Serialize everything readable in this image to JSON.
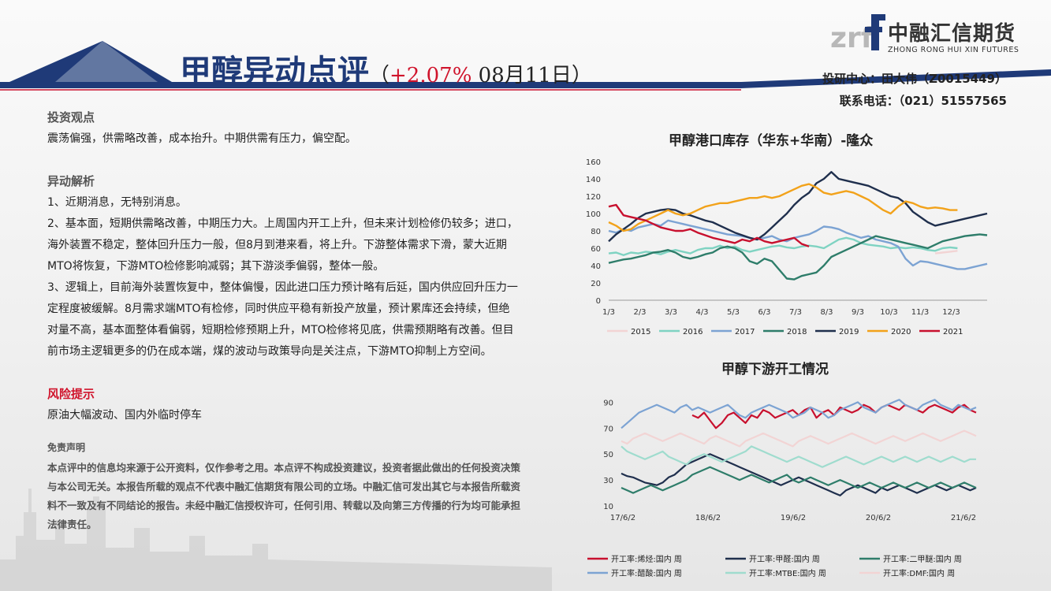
{
  "header": {
    "title": "甲醇异动点评",
    "sub_open": "（",
    "change": "+2.07%",
    "date": " 08月11日",
    "sub_close": "）",
    "author_line": "投研中心：田大伟（Z0015449）",
    "contact_line": "联系电话：（021）51557565"
  },
  "logo": {
    "mark": "zrf",
    "cn": "中融汇信期货",
    "en": "ZHONG RONG HUI XIN FUTURES"
  },
  "content": {
    "view_title": "投资观点",
    "view_text": "震荡偏强，供需略改善，成本抬升。中期供需有压力，偏空配。",
    "analysis_title": "异动解析",
    "p1": "1、近期消息，无特别消息。",
    "p2": "2、基本面，短期供需略改善，中期压力大。上周国内开工上升，但未来计划检修仍较多；进口，海外装置不稳定，整体回升压力一般，但8月到港来看，将上升。下游整体需求下滑，蒙大近期MTO将恢复，下游MTO检修影响减弱；其下游淡季偏弱，整体一般。",
    "p3": "3、逻辑上，目前海外装置恢复中，整体偏慢，因此进口压力预计略有后延，国内供应回升压力一定程度被缓解。8月需求端MTO有检修，同时供应平稳有新投产放量，预计累库还会持续，但绝对量不高，基本面整体看偏弱，短期检修预期上升，MTO检修将见底，供需预期略有改善。但目前市场主逻辑更多的仍在成本端，煤的波动与政策导向是关注点，下游MTO抑制上方空间。",
    "risk_title": "风险提示",
    "risk_text": "原油大幅波动、国内外临时停车",
    "disc_title": "免责声明",
    "disc_text": "本点评中的信息均来源于公开资料，仅作参考之用。本点评不构成投资建议，投资者据此做出的任何投资决策与本公司无关。本报告所载的观点不代表中融汇信期货有限公司的立场。中融汇信可发出其它与本报告所载资料不一致及有不同结论的报告。未经中融汇信授权许可，任何引用、转载以及向第三方传播的行为均可能承担法律责任。"
  },
  "chart_data": [
    {
      "type": "line",
      "title": "甲醇港口库存（华东+华南）-隆众",
      "ylim": [
        0,
        160
      ],
      "yticks": [
        "0",
        "20",
        "40",
        "60",
        "80",
        "100",
        "120",
        "140",
        "160"
      ],
      "xticks": [
        "1/3",
        "2/3",
        "3/3",
        "4/3",
        "5/3",
        "6/3",
        "7/3",
        "8/3",
        "9/3",
        "10/3",
        "11/3",
        "12/3"
      ],
      "x": [
        1,
        2,
        3,
        4,
        5,
        6,
        7,
        8,
        9,
        10,
        11,
        12,
        13,
        14,
        15,
        16,
        17,
        18,
        19,
        20,
        21,
        22,
        23,
        24,
        25,
        26,
        27,
        28,
        29,
        30,
        31,
        32,
        33,
        34,
        35,
        36,
        37,
        38,
        39,
        40,
        41,
        42,
        43,
        44,
        45,
        46,
        47,
        48,
        49,
        50,
        51,
        52
      ],
      "legend_position": "bottom",
      "series": [
        {
          "name": "2015",
          "color": "#f2d4d4",
          "values": [
            null,
            null,
            null,
            null,
            null,
            null,
            null,
            null,
            null,
            null,
            null,
            null,
            null,
            null,
            null,
            null,
            null,
            null,
            null,
            null,
            null,
            null,
            null,
            null,
            null,
            null,
            null,
            null,
            null,
            null,
            null,
            null,
            null,
            null,
            null,
            null,
            null,
            null,
            null,
            null,
            null,
            null,
            null,
            null,
            54,
            55,
            56,
            57,
            null,
            null,
            null,
            null
          ]
        },
        {
          "name": "2016",
          "color": "#7fd3c2",
          "values": [
            54,
            55,
            52,
            55,
            54,
            56,
            55,
            53,
            56,
            58,
            56,
            54,
            58,
            60,
            60,
            63,
            60,
            62,
            58,
            56,
            58,
            60,
            62,
            63,
            61,
            60,
            62,
            63,
            62,
            60,
            65,
            70,
            72,
            70,
            66,
            64,
            63,
            62,
            60,
            61,
            60,
            61,
            60,
            58,
            57,
            60,
            61,
            60,
            null,
            null,
            null,
            null
          ]
        },
        {
          "name": "2017",
          "color": "#7ca3d3",
          "values": [
            80,
            78,
            82,
            80,
            84,
            86,
            88,
            86,
            92,
            90,
            88,
            86,
            84,
            82,
            80,
            78,
            76,
            75,
            74,
            72,
            70,
            72,
            74,
            70,
            68,
            72,
            74,
            76,
            80,
            85,
            84,
            82,
            78,
            75,
            72,
            74,
            70,
            68,
            66,
            62,
            48,
            40,
            45,
            44,
            42,
            40,
            38,
            36,
            36,
            38,
            40,
            42
          ]
        },
        {
          "name": "2018",
          "color": "#2e7d6a",
          "values": [
            43,
            45,
            47,
            48,
            50,
            52,
            55,
            56,
            58,
            55,
            50,
            48,
            50,
            53,
            55,
            60,
            62,
            60,
            55,
            45,
            42,
            48,
            45,
            35,
            25,
            24,
            28,
            30,
            32,
            40,
            50,
            54,
            58,
            62,
            66,
            70,
            74,
            72,
            70,
            68,
            66,
            64,
            62,
            60,
            64,
            68,
            70,
            72,
            74,
            75,
            76,
            75
          ]
        },
        {
          "name": "2019",
          "color": "#1f2f4d",
          "values": [
            68,
            76,
            82,
            88,
            95,
            100,
            102,
            104,
            105,
            104,
            100,
            98,
            95,
            92,
            90,
            86,
            82,
            78,
            75,
            72,
            70,
            76,
            84,
            92,
            100,
            110,
            118,
            124,
            135,
            140,
            148,
            140,
            138,
            136,
            134,
            132,
            128,
            124,
            120,
            118,
            112,
            102,
            96,
            90,
            86,
            88,
            90,
            92,
            94,
            96,
            98,
            100
          ]
        },
        {
          "name": "2020",
          "color": "#f2a21a",
          "values": [
            90,
            86,
            80,
            82,
            88,
            92,
            96,
            100,
            104,
            100,
            98,
            100,
            104,
            108,
            110,
            112,
            112,
            114,
            116,
            118,
            118,
            120,
            118,
            120,
            124,
            128,
            132,
            134,
            130,
            124,
            122,
            124,
            126,
            124,
            120,
            116,
            110,
            104,
            100,
            108,
            114,
            112,
            108,
            106,
            107,
            106,
            104,
            104,
            null,
            null,
            null,
            null
          ]
        },
        {
          "name": "2021",
          "color": "#c8102e",
          "values": [
            108,
            110,
            98,
            96,
            94,
            92,
            88,
            84,
            82,
            80,
            80,
            82,
            78,
            75,
            72,
            70,
            68,
            66,
            70,
            68,
            72,
            68,
            66,
            68,
            70,
            72,
            65,
            62,
            null,
            null,
            null,
            null,
            null,
            null,
            null,
            null,
            null,
            null,
            null,
            null,
            null,
            null,
            null,
            null,
            null,
            null,
            null,
            null,
            null,
            null,
            null,
            null
          ]
        }
      ]
    },
    {
      "type": "line",
      "title": "甲醇下游开工情况",
      "yticks": [
        "10",
        "30",
        "50",
        "70",
        "90"
      ],
      "ylim": [
        10,
        100
      ],
      "xticks": [
        "17/6/2",
        "18/6/2",
        "19/6/2",
        "20/6/2",
        "21/6/2"
      ],
      "legend_position": "bottom",
      "x": [
        0,
        1,
        2,
        3,
        4,
        5,
        6,
        7,
        8,
        9,
        10,
        11,
        12,
        13,
        14,
        15,
        16,
        17,
        18,
        19,
        20,
        21,
        22,
        23,
        24,
        25,
        26,
        27,
        28,
        29,
        30,
        31,
        32,
        33,
        34,
        35,
        36,
        37,
        38,
        39,
        40,
        41,
        42,
        43,
        44,
        45,
        46,
        47,
        48,
        49,
        50,
        51,
        52,
        53,
        54,
        55,
        56,
        57,
        58,
        59,
        60
      ],
      "series": [
        {
          "name": "开工率:烯烃:国内 周",
          "color": "#c8102e",
          "values": [
            null,
            null,
            null,
            null,
            null,
            null,
            null,
            null,
            null,
            null,
            null,
            null,
            80,
            78,
            82,
            76,
            70,
            74,
            80,
            82,
            78,
            74,
            80,
            78,
            84,
            82,
            78,
            80,
            82,
            84,
            80,
            84,
            86,
            78,
            82,
            84,
            80,
            86,
            84,
            82,
            84,
            88,
            86,
            82,
            86,
            88,
            86,
            84,
            88,
            86,
            84,
            82,
            86,
            88,
            86,
            84,
            82,
            86,
            88,
            84,
            82
          ]
        },
        {
          "name": "开工率:甲醛:国内 周",
          "color": "#1f2f4d",
          "values": [
            35,
            33,
            32,
            30,
            28,
            27,
            26,
            28,
            32,
            34,
            38,
            42,
            44,
            46,
            48,
            50,
            48,
            46,
            44,
            42,
            40,
            38,
            36,
            34,
            32,
            30,
            28,
            26,
            28,
            30,
            32,
            30,
            28,
            26,
            24,
            22,
            20,
            18,
            22,
            24,
            26,
            24,
            22,
            20,
            24,
            22,
            24,
            26,
            24,
            22,
            20,
            22,
            24,
            26,
            24,
            22,
            24,
            26,
            24,
            22,
            24
          ]
        },
        {
          "name": "开工率:二甲醚:国内 周",
          "color": "#2e7d6a",
          "values": [
            24,
            22,
            20,
            22,
            24,
            26,
            24,
            22,
            24,
            26,
            28,
            30,
            34,
            36,
            38,
            40,
            38,
            36,
            34,
            32,
            30,
            32,
            34,
            32,
            30,
            28,
            30,
            32,
            34,
            30,
            28,
            30,
            32,
            30,
            28,
            26,
            28,
            30,
            28,
            26,
            24,
            26,
            28,
            26,
            24,
            26,
            28,
            26,
            24,
            26,
            28,
            26,
            24,
            26,
            28,
            26,
            24,
            26,
            28,
            26,
            24
          ]
        },
        {
          "name": "开工率:醋酸:国内 周",
          "color": "#7ca3d3",
          "values": [
            70,
            74,
            78,
            82,
            84,
            86,
            88,
            86,
            84,
            82,
            86,
            88,
            84,
            86,
            84,
            82,
            84,
            86,
            88,
            84,
            80,
            78,
            82,
            84,
            86,
            88,
            86,
            84,
            82,
            78,
            80,
            82,
            86,
            84,
            82,
            78,
            80,
            84,
            86,
            88,
            90,
            86,
            84,
            82,
            86,
            88,
            90,
            92,
            88,
            86,
            84,
            88,
            90,
            92,
            88,
            86,
            84,
            88,
            86,
            84,
            86
          ]
        },
        {
          "name": "开工率:MTBE:国内 周",
          "color": "#9fdcce",
          "values": [
            56,
            52,
            50,
            48,
            46,
            48,
            50,
            52,
            48,
            46,
            44,
            42,
            46,
            48,
            50,
            48,
            46,
            44,
            46,
            48,
            50,
            52,
            56,
            54,
            52,
            50,
            48,
            46,
            44,
            46,
            48,
            46,
            44,
            42,
            40,
            42,
            44,
            46,
            48,
            46,
            44,
            42,
            44,
            46,
            48,
            46,
            44,
            46,
            48,
            46,
            44,
            46,
            48,
            46,
            44,
            46,
            48,
            46,
            44,
            46,
            46
          ]
        },
        {
          "name": "开工率:DMF:国内 周",
          "color": "#f2d4d4",
          "values": [
            60,
            58,
            62,
            64,
            66,
            64,
            62,
            60,
            62,
            64,
            66,
            64,
            62,
            60,
            58,
            62,
            64,
            62,
            60,
            58,
            56,
            60,
            62,
            64,
            66,
            64,
            62,
            60,
            58,
            56,
            60,
            62,
            64,
            62,
            60,
            58,
            60,
            62,
            64,
            66,
            64,
            62,
            60,
            58,
            60,
            62,
            64,
            62,
            60,
            62,
            64,
            66,
            64,
            62,
            60,
            62,
            64,
            66,
            68,
            66,
            64
          ]
        }
      ]
    }
  ]
}
